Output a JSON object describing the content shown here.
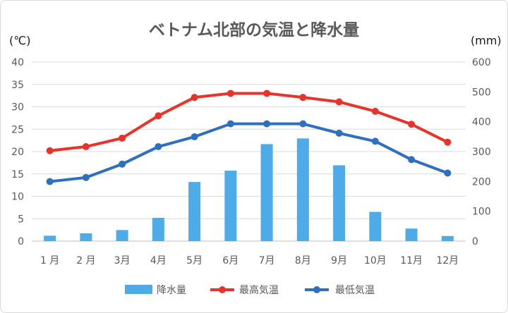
{
  "chart_data": {
    "type": "bar+line",
    "title": "ベトナム北部の気温と降水量",
    "left_unit": "(℃)",
    "right_unit": "(mm)",
    "categories": [
      "1 月",
      "2 月",
      "3月",
      "4月",
      "5月",
      "6月",
      "7月",
      "8月",
      "9月",
      "10月",
      "11月",
      "12月"
    ],
    "left_axis": {
      "min": 0,
      "max": 40,
      "step": 5,
      "ticks": [
        "0",
        "5",
        "10",
        "15",
        "20",
        "25",
        "30",
        "35",
        "40"
      ]
    },
    "right_axis": {
      "min": 0,
      "max": 600,
      "step": 100,
      "ticks": [
        "0",
        "100",
        "200",
        "300",
        "400",
        "500",
        "600"
      ]
    },
    "grid": true,
    "legend_position": "bottom",
    "series": [
      {
        "name": "降水量",
        "type": "bar",
        "axis": "right",
        "color": "#4dabe8",
        "values": [
          18,
          26,
          37,
          78,
          198,
          236,
          325,
          344,
          254,
          98,
          42,
          17
        ]
      },
      {
        "name": "最高気温",
        "type": "line",
        "axis": "left",
        "color": "#e8332a",
        "values": [
          20.2,
          21.1,
          23.0,
          28.0,
          32.1,
          33.0,
          33.0,
          32.1,
          31.1,
          29.0,
          26.1,
          22.1
        ]
      },
      {
        "name": "最低気温",
        "type": "line",
        "axis": "left",
        "color": "#2e6fbe",
        "values": [
          13.3,
          14.2,
          17.2,
          21.1,
          23.3,
          26.2,
          26.2,
          26.2,
          24.1,
          22.3,
          18.2,
          15.2
        ]
      }
    ]
  }
}
